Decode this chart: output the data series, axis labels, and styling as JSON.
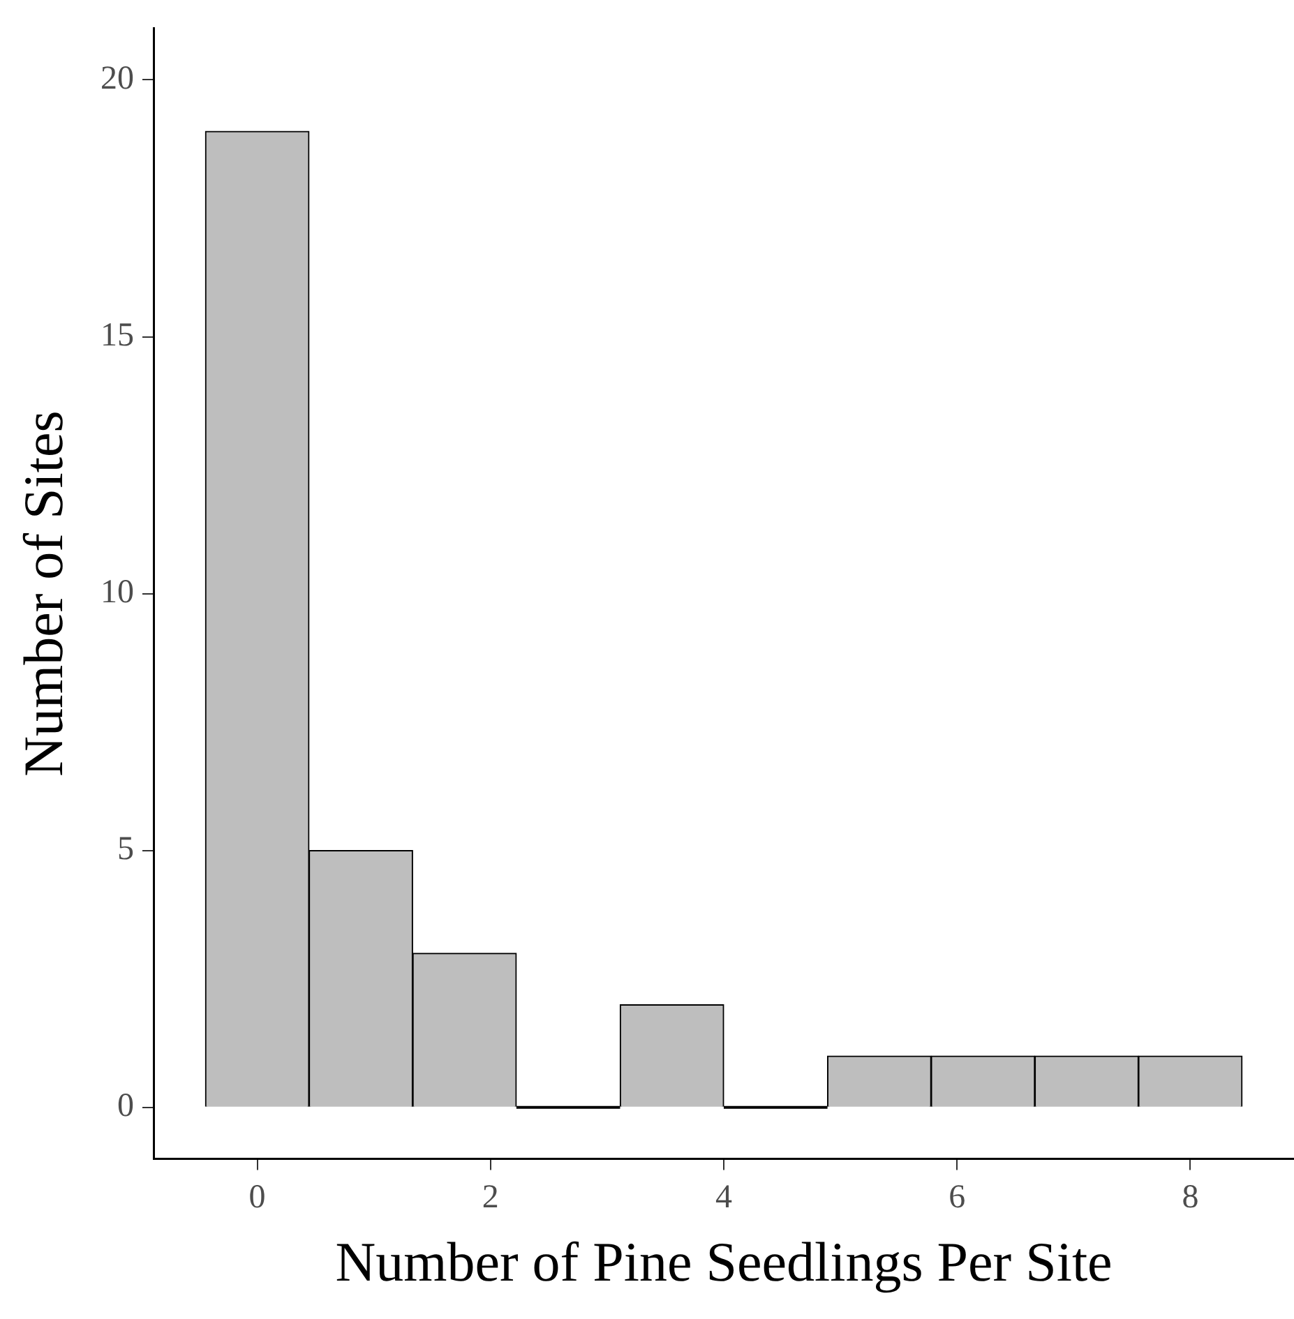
{
  "chart_data": {
    "type": "histogram",
    "xlabel": "Number of Pine Seedlings Per Site",
    "ylabel": "Number of Sites",
    "bins": [
      -0.444,
      0.444,
      1.333,
      2.222,
      3.111,
      4.0,
      4.889,
      5.778,
      6.667,
      7.556,
      8.444
    ],
    "values": [
      19,
      5,
      3,
      0,
      2,
      0,
      1,
      1,
      1,
      1
    ],
    "color": "#bebebe",
    "xlim": [
      -0.889,
      8.889
    ],
    "xticks": [
      0,
      2,
      4,
      6,
      8
    ],
    "ylim": [
      -1,
      21
    ],
    "yticks": [
      0,
      5,
      10,
      15,
      20
    ],
    "grid": false
  }
}
